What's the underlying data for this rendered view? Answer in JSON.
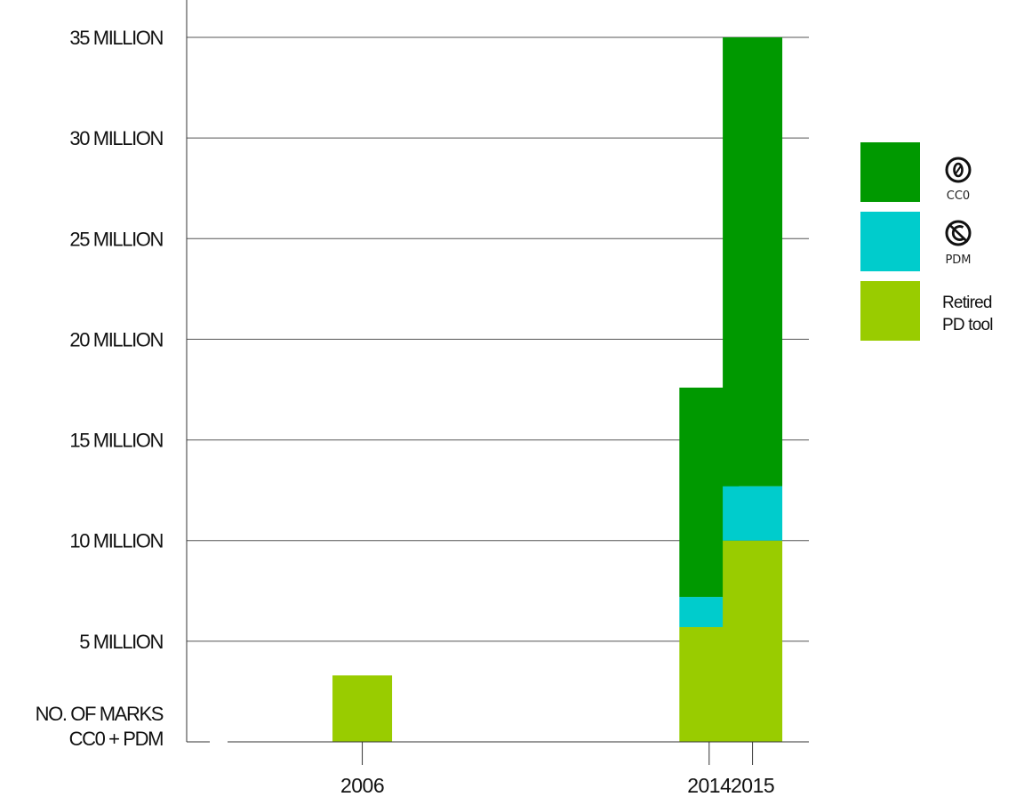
{
  "chart_data": {
    "type": "bar",
    "stacked": true,
    "title": "",
    "ylabel": [
      "NO. OF MARKS",
      "CC0 + PDM"
    ],
    "xlabel": "",
    "ylim": [
      0,
      35000000
    ],
    "y_ticks": [
      {
        "value": 5000000,
        "label": "5 MILLION"
      },
      {
        "value": 10000000,
        "label": "10 MILLION"
      },
      {
        "value": 15000000,
        "label": "15 MILLION"
      },
      {
        "value": 20000000,
        "label": "20 MILLION"
      },
      {
        "value": 25000000,
        "label": "25 MILLION"
      },
      {
        "value": 30000000,
        "label": "30 MILLION"
      },
      {
        "value": 35000000,
        "label": "35 MILLION"
      }
    ],
    "categories": [
      2006,
      2014,
      2015
    ],
    "x_axis_type": "year",
    "x_range": [
      2001.95,
      2016.3
    ],
    "series": [
      {
        "key": "retired",
        "name": "Retired PD tool",
        "color": "#99CC00",
        "values": [
          3300000,
          5700000,
          10000000
        ]
      },
      {
        "key": "pdm",
        "name": "PDM",
        "color": "#00CCCC",
        "values": [
          0,
          1500000,
          2700000
        ]
      },
      {
        "key": "cc0",
        "name": "CC0",
        "color": "#009900",
        "values": [
          0,
          10400000,
          22300000
        ]
      }
    ],
    "legend": {
      "placement": "right",
      "items": [
        {
          "key": "cc0",
          "label": "CC0",
          "icon": "cc-zero-icon"
        },
        {
          "key": "pdm",
          "label": "PDM",
          "icon": "public-domain-mark-icon"
        },
        {
          "key": "retired",
          "label": "Retired PD tool",
          "label_lines": [
            "Retired",
            "PD tool"
          ]
        }
      ]
    },
    "grid": true
  }
}
